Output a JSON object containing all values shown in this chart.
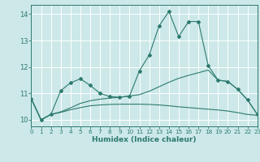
{
  "xlabel": "Humidex (Indice chaleur)",
  "bg_color": "#cce8e8",
  "grid_color": "#ffffff",
  "line_color": "#2d7a6e",
  "xlim": [
    0,
    23
  ],
  "ylim": [
    9.75,
    14.35
  ],
  "x": [
    0,
    1,
    2,
    3,
    4,
    5,
    6,
    7,
    8,
    9,
    10,
    11,
    12,
    13,
    14,
    15,
    16,
    17,
    18,
    19,
    20,
    21,
    22,
    23
  ],
  "line1": [
    10.8,
    10.0,
    10.2,
    11.1,
    11.4,
    11.55,
    11.3,
    11.0,
    10.88,
    10.85,
    10.9,
    11.85,
    12.45,
    13.55,
    14.1,
    13.15,
    13.72,
    13.72,
    12.05,
    11.5,
    11.45,
    11.15,
    10.75,
    10.2
  ],
  "line2": [
    10.8,
    10.0,
    10.2,
    10.3,
    10.45,
    10.62,
    10.72,
    10.78,
    10.82,
    10.85,
    10.9,
    10.95,
    11.08,
    11.25,
    11.42,
    11.57,
    11.68,
    11.78,
    11.88,
    11.5,
    11.45,
    11.15,
    10.75,
    10.2
  ],
  "line3": [
    10.8,
    10.0,
    10.2,
    10.28,
    10.38,
    10.46,
    10.53,
    10.56,
    10.58,
    10.59,
    10.59,
    10.59,
    10.58,
    10.56,
    10.53,
    10.49,
    10.46,
    10.43,
    10.4,
    10.37,
    10.33,
    10.27,
    10.2,
    10.17
  ],
  "yticks": [
    10,
    11,
    12,
    13,
    14
  ],
  "xticks": [
    0,
    1,
    2,
    3,
    4,
    5,
    6,
    7,
    8,
    9,
    10,
    11,
    12,
    13,
    14,
    15,
    16,
    17,
    18,
    19,
    20,
    21,
    22,
    23
  ]
}
